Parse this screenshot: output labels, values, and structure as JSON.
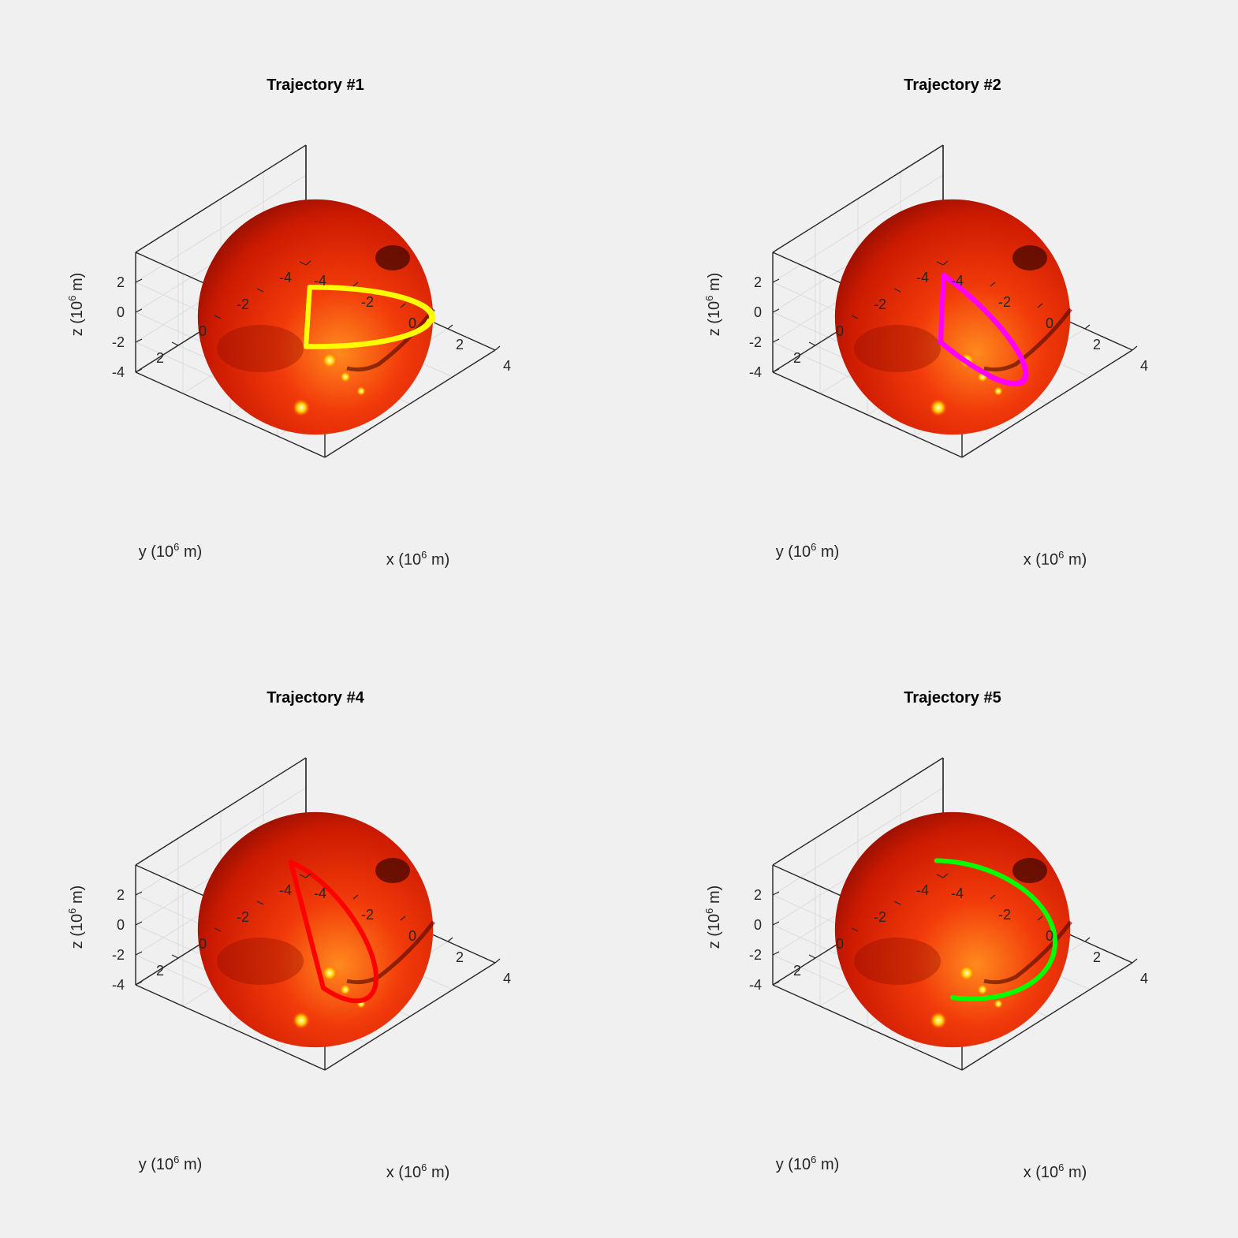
{
  "figure": {
    "background": "#f0f0f0"
  },
  "chart_data": [
    {
      "type": "line3d",
      "title": "Trajectory #1",
      "xlabel": "x (10^6 m)",
      "ylabel": "y (10^6 m)",
      "zlabel": "z (10^6 m)",
      "xlim": [
        -4,
        4
      ],
      "ylim": [
        -4,
        4
      ],
      "zlim": [
        -4,
        4
      ],
      "xticks": [
        "-4",
        "-2",
        "0",
        "2",
        "4"
      ],
      "yticks": [
        "-4",
        "-2",
        "0",
        "2"
      ],
      "zticks": [
        "-4",
        "-2",
        "0",
        "2"
      ],
      "grid": true,
      "body": {
        "name": "Mars",
        "radius": 3.39
      },
      "series": [
        {
          "color": "#ffff00",
          "orbit": {
            "radius": 3.6,
            "inclination_deg": 28,
            "node_deg": -35,
            "revolutions": 2
          }
        }
      ]
    },
    {
      "type": "line3d",
      "title": "Trajectory #2",
      "xlabel": "x (10^6 m)",
      "ylabel": "y (10^6 m)",
      "zlabel": "z (10^6 m)",
      "xlim": [
        -4,
        4
      ],
      "ylim": [
        -4,
        4
      ],
      "zlim": [
        -4,
        4
      ],
      "xticks": [
        "-4",
        "-2",
        "0",
        "2",
        "4"
      ],
      "yticks": [
        "-4",
        "-2",
        "0",
        "2"
      ],
      "zticks": [
        "-4",
        "-2",
        "0",
        "2"
      ],
      "grid": true,
      "body": {
        "name": "Mars",
        "radius": 3.39
      },
      "series": [
        {
          "color": "#ff00ff",
          "orbit": {
            "radius": 3.6,
            "inclination_deg": 55,
            "node_deg": 30,
            "revolutions": 2
          }
        }
      ]
    },
    {
      "type": "line3d",
      "title": "Trajectory #4",
      "xlabel": "x (10^6 m)",
      "ylabel": "y (10^6 m)",
      "zlabel": "z (10^6 m)",
      "xlim": [
        -4,
        4
      ],
      "ylim": [
        -4,
        4
      ],
      "zlim": [
        -4,
        4
      ],
      "xticks": [
        "-4",
        "-2",
        "0",
        "2",
        "4"
      ],
      "yticks": [
        "-4",
        "-2",
        "0",
        "2"
      ],
      "zticks": [
        "-4",
        "-2",
        "0",
        "2"
      ],
      "grid": true,
      "body": {
        "name": "Mars",
        "radius": 3.39
      },
      "series": [
        {
          "color": "#ff0000",
          "orbit": {
            "radius": 3.5,
            "inclination_deg": 90,
            "node_deg": 15,
            "revolutions": 1
          }
        }
      ]
    },
    {
      "type": "line3d",
      "title": "Trajectory #5",
      "xlabel": "x (10^6 m)",
      "ylabel": "y (10^6 m)",
      "zlabel": "z (10^6 m)",
      "xlim": [
        -4,
        4
      ],
      "ylim": [
        -4,
        4
      ],
      "zlim": [
        -4,
        4
      ],
      "xticks": [
        "-4",
        "-2",
        "0",
        "2",
        "4"
      ],
      "yticks": [
        "-4",
        "-2",
        "0",
        "2"
      ],
      "zticks": [
        "-4",
        "-2",
        "0",
        "2"
      ],
      "grid": true,
      "body": {
        "name": "Mars",
        "radius": 3.39
      },
      "series": [
        {
          "color": "#00ff00",
          "orbit": {
            "radius": 3.5,
            "inclination_deg": 25,
            "node_deg": 70,
            "revolutions": 1
          }
        }
      ]
    }
  ]
}
